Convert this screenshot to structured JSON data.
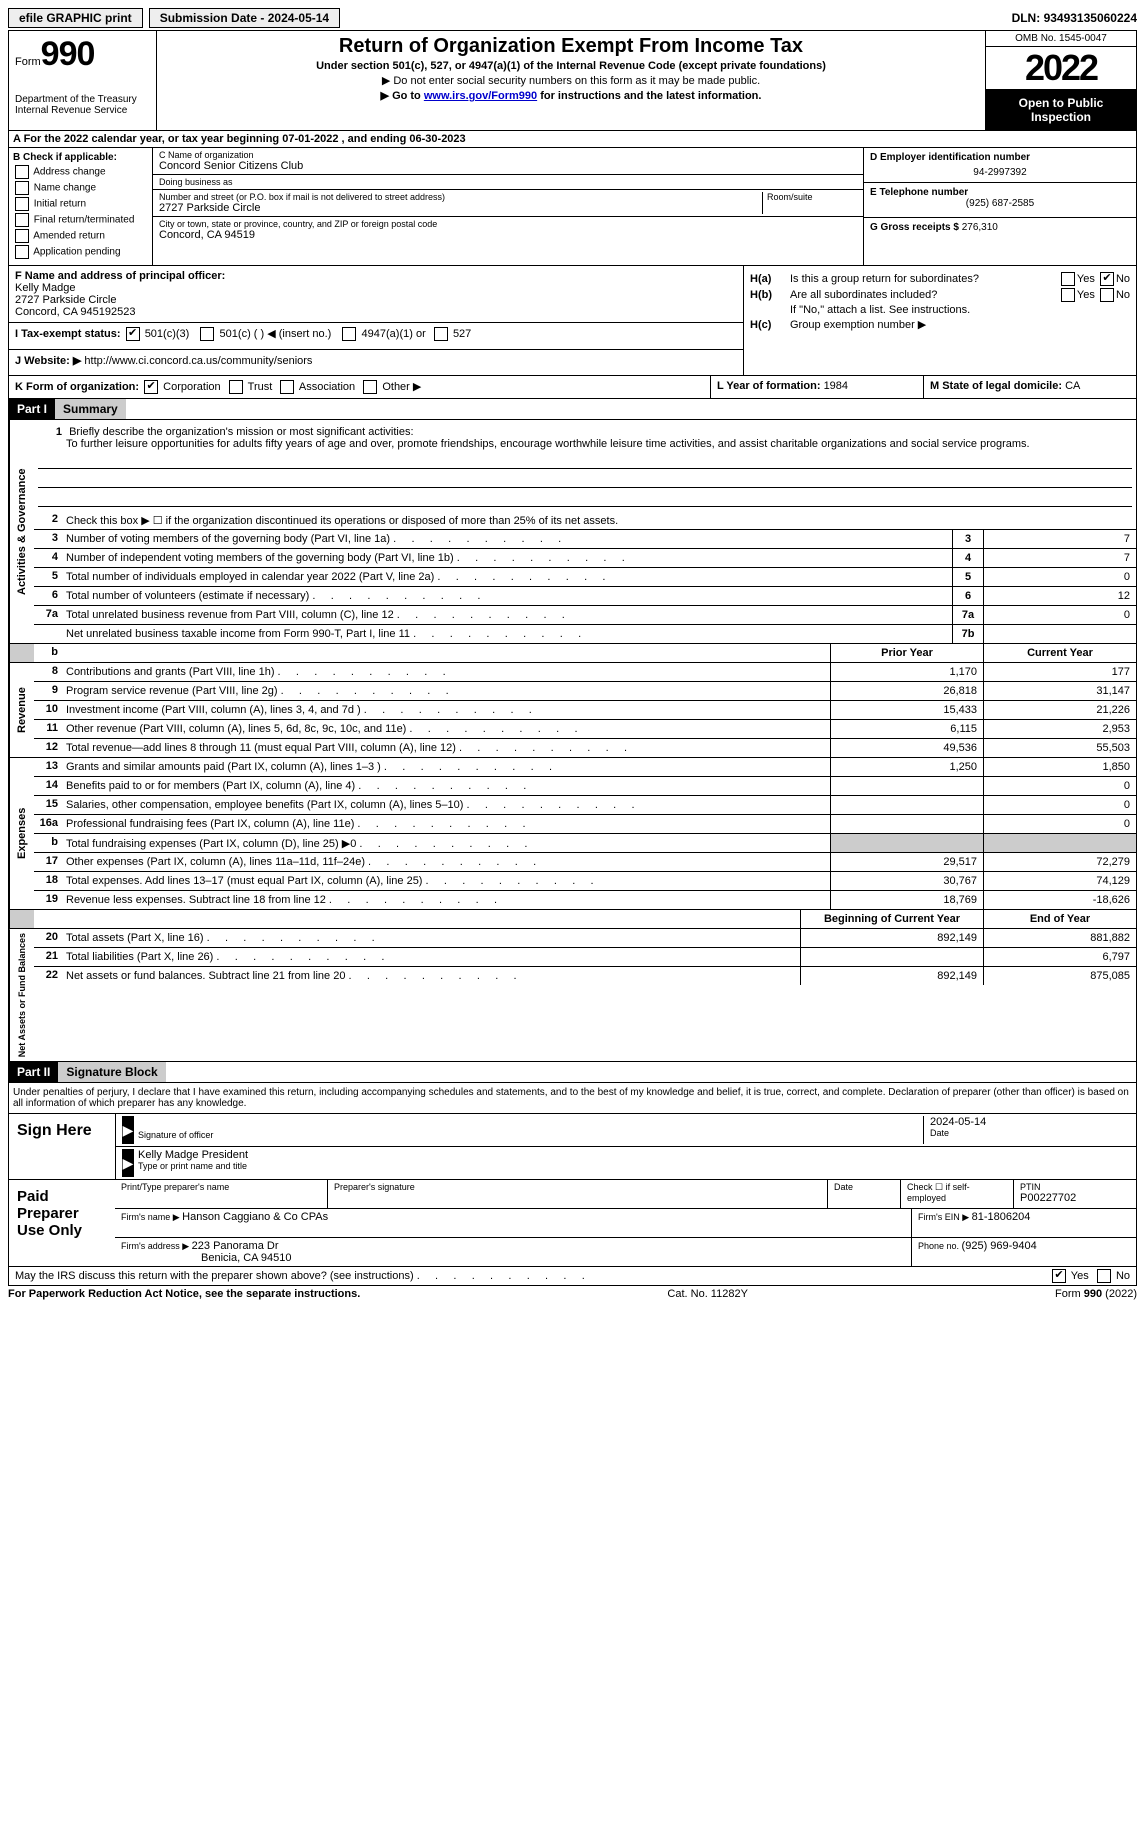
{
  "topbar": {
    "efile": "efile GRAPHIC print",
    "sub_label": "Submission Date - ",
    "sub_date": "2024-05-14",
    "dln_label": "DLN: ",
    "dln": "93493135060224"
  },
  "header": {
    "form_word": "Form",
    "form_num": "990",
    "dept": "Department of the Treasury Internal Revenue Service",
    "title": "Return of Organization Exempt From Income Tax",
    "sub1": "Under section 501(c), 527, or 4947(a)(1) of the Internal Revenue Code (except private foundations)",
    "sub2": "Do not enter social security numbers on this form as it may be made public.",
    "sub3_a": "Go to ",
    "sub3_link": "www.irs.gov/Form990",
    "sub3_b": " for instructions and the latest information.",
    "omb": "OMB No. 1545-0047",
    "year": "2022",
    "open": "Open to Public Inspection"
  },
  "row_a": {
    "label": "A For the 2022 calendar year, or tax year beginning ",
    "begin": "07-01-2022",
    "mid": "   , and ending ",
    "end": "06-30-2023"
  },
  "b": {
    "hdr": "B Check if applicable:",
    "opts": [
      "Address change",
      "Name change",
      "Initial return",
      "Final return/terminated",
      "Amended return",
      "Application pending"
    ]
  },
  "c": {
    "name_label": "C Name of organization",
    "name": "Concord Senior Citizens Club",
    "dba_label": "Doing business as",
    "street_label": "Number and street (or P.O. box if mail is not delivered to street address)",
    "room_label": "Room/suite",
    "street": "2727 Parkside Circle",
    "city_label": "City or town, state or province, country, and ZIP or foreign postal code",
    "city": "Concord, CA  94519"
  },
  "d": {
    "label": "D Employer identification number",
    "ein": "94-2997392",
    "e_label": "E Telephone number",
    "phone": "(925) 687-2585",
    "g_label": "G Gross receipts $ ",
    "gross": "276,310"
  },
  "f": {
    "label": "F  Name and address of principal officer:",
    "name": "Kelly Madge",
    "addr1": "2727 Parkside Circle",
    "addr2": "Concord, CA  945192523"
  },
  "h": {
    "ha_label": "H(a)",
    "ha_text": "Is this a group return for subordinates?",
    "hb_label": "H(b)",
    "hb_text": "Are all subordinates included?",
    "hb_note": "If \"No,\" attach a list. See instructions.",
    "hc_label": "H(c)",
    "hc_text": "Group exemption number ▶",
    "yes": "Yes",
    "no": "No"
  },
  "i": {
    "label": "I   Tax-exempt status:",
    "o1": "501(c)(3)",
    "o2": "501(c) (  ) ◀ (insert no.)",
    "o3": "4947(a)(1) or",
    "o4": "527"
  },
  "j": {
    "label": "J  Website: ▶  ",
    "url": "http://www.ci.concord.ca.us/community/seniors"
  },
  "k": {
    "label": "K Form of organization:",
    "o1": "Corporation",
    "o2": "Trust",
    "o3": "Association",
    "o4": "Other ▶"
  },
  "l": {
    "label": "L Year of formation: ",
    "val": "1984"
  },
  "m": {
    "label": "M State of legal domicile: ",
    "val": "CA"
  },
  "part1": {
    "part": "Part I",
    "title": "Summary",
    "q1_label": "Briefly describe the organization's mission or most significant activities:",
    "q1_text": "To further leisure opportunities for adults fifty years of age and over, promote friendships, encourage worthwhile leisure time activities, and assist charitable organizations and social service programs.",
    "q2": "Check this box ▶ ☐  if the organization discontinued its operations or disposed of more than 25% of its net assets.",
    "rows_ag": [
      {
        "n": "3",
        "d": "Number of voting members of the governing body (Part VI, line 1a)",
        "b": "3",
        "v": "7"
      },
      {
        "n": "4",
        "d": "Number of independent voting members of the governing body (Part VI, line 1b)",
        "b": "4",
        "v": "7"
      },
      {
        "n": "5",
        "d": "Total number of individuals employed in calendar year 2022 (Part V, line 2a)",
        "b": "5",
        "v": "0"
      },
      {
        "n": "6",
        "d": "Total number of volunteers (estimate if necessary)",
        "b": "6",
        "v": "12"
      },
      {
        "n": "7a",
        "d": "Total unrelated business revenue from Part VIII, column (C), line 12",
        "b": "7a",
        "v": "0"
      },
      {
        "n": "",
        "d": "Net unrelated business taxable income from Form 990-T, Part I, line 11",
        "b": "7b",
        "v": ""
      }
    ],
    "col_prior": "Prior Year",
    "col_curr": "Current Year",
    "rows_rev": [
      {
        "n": "8",
        "d": "Contributions and grants (Part VIII, line 1h)",
        "p": "1,170",
        "c": "177"
      },
      {
        "n": "9",
        "d": "Program service revenue (Part VIII, line 2g)",
        "p": "26,818",
        "c": "31,147"
      },
      {
        "n": "10",
        "d": "Investment income (Part VIII, column (A), lines 3, 4, and 7d )",
        "p": "15,433",
        "c": "21,226"
      },
      {
        "n": "11",
        "d": "Other revenue (Part VIII, column (A), lines 5, 6d, 8c, 9c, 10c, and 11e)",
        "p": "6,115",
        "c": "2,953"
      },
      {
        "n": "12",
        "d": "Total revenue—add lines 8 through 11 (must equal Part VIII, column (A), line 12)",
        "p": "49,536",
        "c": "55,503"
      }
    ],
    "rows_exp": [
      {
        "n": "13",
        "d": "Grants and similar amounts paid (Part IX, column (A), lines 1–3 )",
        "p": "1,250",
        "c": "1,850"
      },
      {
        "n": "14",
        "d": "Benefits paid to or for members (Part IX, column (A), line 4)",
        "p": "",
        "c": "0"
      },
      {
        "n": "15",
        "d": "Salaries, other compensation, employee benefits (Part IX, column (A), lines 5–10)",
        "p": "",
        "c": "0"
      },
      {
        "n": "16a",
        "d": "Professional fundraising fees (Part IX, column (A), line 11e)",
        "p": "",
        "c": "0"
      },
      {
        "n": "b",
        "d": "Total fundraising expenses (Part IX, column (D), line 25) ▶0",
        "p": "grey",
        "c": "grey"
      },
      {
        "n": "17",
        "d": "Other expenses (Part IX, column (A), lines 11a–11d, 11f–24e)",
        "p": "29,517",
        "c": "72,279"
      },
      {
        "n": "18",
        "d": "Total expenses. Add lines 13–17 (must equal Part IX, column (A), line 25)",
        "p": "30,767",
        "c": "74,129"
      },
      {
        "n": "19",
        "d": "Revenue less expenses. Subtract line 18 from line 12",
        "p": "18,769",
        "c": "-18,626"
      }
    ],
    "col_begin": "Beginning of Current Year",
    "col_end": "End of Year",
    "rows_net": [
      {
        "n": "20",
        "d": "Total assets (Part X, line 16)",
        "p": "892,149",
        "c": "881,882"
      },
      {
        "n": "21",
        "d": "Total liabilities (Part X, line 26)",
        "p": "",
        "c": "6,797"
      },
      {
        "n": "22",
        "d": "Net assets or fund balances. Subtract line 21 from line 20",
        "p": "892,149",
        "c": "875,085"
      }
    ],
    "vlab_ag": "Activities & Governance",
    "vlab_rev": "Revenue",
    "vlab_exp": "Expenses",
    "vlab_net": "Net Assets or Fund Balances"
  },
  "part2": {
    "part": "Part II",
    "title": "Signature Block",
    "decl": "Under penalties of perjury, I declare that I have examined this return, including accompanying schedules and statements, and to the best of my knowledge and belief, it is true, correct, and complete. Declaration of preparer (other than officer) is based on all information of which preparer has any knowledge.",
    "sign_here": "Sign Here",
    "sig_officer": "Signature of officer",
    "date_lbl": "Date",
    "sig_date": "2024-05-14",
    "name_title": "Kelly Madge  President",
    "type_name": "Type or print name and title",
    "paid": "Paid Preparer Use Only",
    "p_name_lbl": "Print/Type preparer's name",
    "p_sig_lbl": "Preparer's signature",
    "p_date_lbl": "Date",
    "p_check": "Check ☐ if self-employed",
    "ptin_lbl": "PTIN",
    "ptin": "P00227702",
    "firm_name_lbl": "Firm's name      ▶ ",
    "firm_name": "Hanson Caggiano & Co CPAs",
    "firm_ein_lbl": "Firm's EIN ▶ ",
    "firm_ein": "81-1806204",
    "firm_addr_lbl": "Firm's address ▶ ",
    "firm_addr1": "223 Panorama Dr",
    "firm_addr2": "Benicia, CA  94510",
    "phone_lbl": "Phone no. ",
    "phone": "(925) 969-9404",
    "discuss": "May the IRS discuss this return with the preparer shown above? (see instructions)",
    "yes": "Yes",
    "no": "No"
  },
  "footer": {
    "left": "For Paperwork Reduction Act Notice, see the separate instructions.",
    "mid": "Cat. No. 11282Y",
    "right": "Form 990 (2022)"
  }
}
